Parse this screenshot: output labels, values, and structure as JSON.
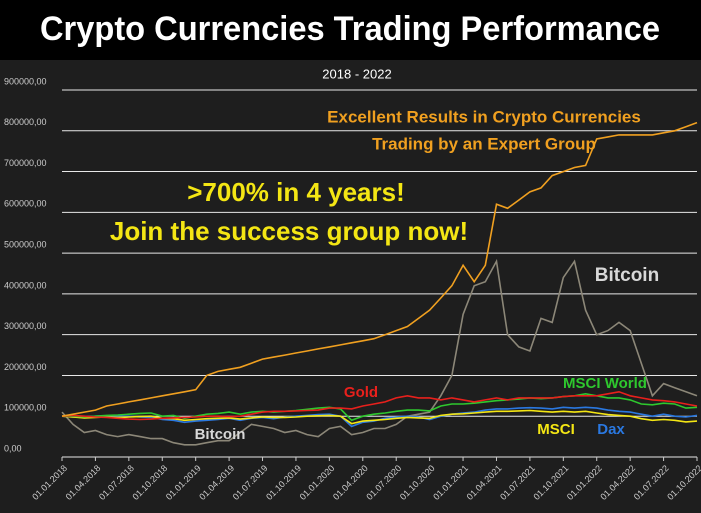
{
  "chart_data": {
    "type": "line",
    "title": "Crypto Currencies Trading Performance",
    "subtitle": "2018 - 2022",
    "annotations": [
      "Excellent Results in Crypto Currencies",
      "Trading by an Expert Group",
      ">700% in 4 years!",
      "Join the success group now!"
    ],
    "x": [
      "01.01.2018",
      null,
      null,
      "01.04.2018",
      null,
      null,
      "01.07.2018",
      null,
      null,
      "01.10.2018",
      null,
      null,
      "01.01.2019",
      null,
      null,
      "01.04.2019",
      null,
      null,
      "01.07.2019",
      null,
      null,
      "01.10.2019",
      null,
      null,
      "01.01.2020",
      null,
      null,
      "01.04.2020",
      null,
      null,
      "01.07.2020",
      null,
      null,
      "01.10.2020",
      null,
      null,
      "01.01.2021",
      null,
      null,
      "01.04.2021",
      null,
      null,
      "01.07.2021",
      null,
      null,
      "01.10.2021",
      null,
      null,
      "01.01.2022",
      null,
      null,
      "01.04.2022",
      null,
      null,
      "01.07.2022",
      null,
      null,
      "01.10.2022"
    ],
    "ylim": [
      0,
      900000
    ],
    "yticks": [
      {
        "value": 0,
        "label": "0,00"
      },
      {
        "value": 100000,
        "label": "100000,00"
      },
      {
        "value": 200000,
        "label": "200000,00"
      },
      {
        "value": 300000,
        "label": "300000,00"
      },
      {
        "value": 400000,
        "label": "400000,00"
      },
      {
        "value": 500000,
        "label": "500000,00"
      },
      {
        "value": 600000,
        "label": "600000,00"
      },
      {
        "value": 700000,
        "label": "700000,00"
      },
      {
        "value": 800000,
        "label": "800000,00"
      },
      {
        "value": 900000,
        "label": "900000,00"
      }
    ],
    "grid": true,
    "series": [
      {
        "color": "#f0a020",
        "values": [
          100000,
          105000,
          110000,
          115000,
          125000,
          130000,
          135000,
          140000,
          145000,
          150000,
          155000,
          160000,
          165000,
          200000,
          210000,
          215000,
          220000,
          230000,
          240000,
          245000,
          250000,
          255000,
          260000,
          265000,
          270000,
          275000,
          280000,
          285000,
          290000,
          300000,
          310000,
          320000,
          340000,
          360000,
          390000,
          420000,
          470000,
          430000,
          470000,
          620000,
          610000,
          630000,
          650000,
          660000,
          690000,
          700000,
          710000,
          715000,
          780000,
          785000,
          790000,
          790000,
          790000,
          790000,
          795000,
          800000,
          810000,
          820000
        ]
      },
      {
        "name": "Bitcoin",
        "color": "#8c8778",
        "values": [
          110000,
          80000,
          60000,
          65000,
          55000,
          50000,
          55000,
          50000,
          45000,
          45000,
          35000,
          30000,
          30000,
          35000,
          40000,
          40000,
          60000,
          80000,
          75000,
          70000,
          60000,
          65000,
          55000,
          50000,
          70000,
          75000,
          55000,
          60000,
          70000,
          70000,
          80000,
          100000,
          105000,
          110000,
          150000,
          200000,
          350000,
          420000,
          430000,
          480000,
          300000,
          270000,
          260000,
          340000,
          330000,
          440000,
          480000,
          360000,
          300000,
          310000,
          330000,
          310000,
          230000,
          150000,
          180000,
          170000,
          160000,
          150000
        ]
      },
      {
        "name": "Gold",
        "color": "#e8201c",
        "values": [
          100000,
          102000,
          100000,
          98000,
          97000,
          95000,
          93000,
          92000,
          93000,
          95000,
          96000,
          97000,
          98000,
          100000,
          100000,
          99000,
          100000,
          105000,
          110000,
          112000,
          112000,
          113000,
          114000,
          115000,
          120000,
          120000,
          118000,
          125000,
          130000,
          135000,
          145000,
          150000,
          145000,
          145000,
          140000,
          145000,
          140000,
          135000,
          140000,
          145000,
          140000,
          145000,
          145000,
          145000,
          145000,
          148000,
          150000,
          150000,
          150000,
          155000,
          160000,
          150000,
          145000,
          140000,
          138000,
          135000,
          130000,
          125000
        ]
      },
      {
        "name": "MSCI World",
        "color": "#2ec82e",
        "values": [
          100000,
          100000,
          98000,
          100000,
          102000,
          103000,
          105000,
          107000,
          108000,
          100000,
          102000,
          95000,
          100000,
          105000,
          107000,
          110000,
          105000,
          110000,
          112000,
          110000,
          112000,
          114000,
          117000,
          120000,
          122000,
          118000,
          90000,
          100000,
          105000,
          108000,
          112000,
          115000,
          115000,
          113000,
          125000,
          130000,
          130000,
          132000,
          135000,
          138000,
          140000,
          142000,
          145000,
          143000,
          145000,
          148000,
          150000,
          155000,
          150000,
          145000,
          145000,
          140000,
          130000,
          128000,
          132000,
          130000,
          120000,
          122000
        ]
      },
      {
        "name": "MSCI",
        "color": "#f4e614",
        "values": [
          100000,
          98000,
          96000,
          97000,
          98000,
          97000,
          98000,
          99000,
          100000,
          95000,
          94000,
          90000,
          92000,
          94000,
          95000,
          96000,
          93000,
          96000,
          98000,
          97000,
          97000,
          98000,
          100000,
          101000,
          102000,
          100000,
          82000,
          88000,
          90000,
          92000,
          95000,
          97000,
          96000,
          95000,
          102000,
          105000,
          106000,
          108000,
          110000,
          112000,
          112000,
          113000,
          114000,
          112000,
          110000,
          112000,
          110000,
          112000,
          108000,
          104000,
          102000,
          100000,
          94000,
          90000,
          92000,
          90000,
          86000,
          88000
        ]
      },
      {
        "name": "Dax",
        "color": "#2a78e0",
        "values": [
          100000,
          98000,
          97000,
          100000,
          101000,
          100000,
          100000,
          98000,
          97000,
          92000,
          90000,
          85000,
          88000,
          90000,
          92000,
          95000,
          90000,
          95000,
          97000,
          94000,
          98000,
          100000,
          102000,
          104000,
          105000,
          100000,
          75000,
          85000,
          88000,
          95000,
          98000,
          100000,
          98000,
          92000,
          100000,
          105000,
          108000,
          110000,
          115000,
          118000,
          118000,
          120000,
          121000,
          120000,
          118000,
          122000,
          120000,
          122000,
          120000,
          115000,
          112000,
          110000,
          105000,
          100000,
          105000,
          100000,
          98000,
          102000
        ]
      }
    ]
  }
}
